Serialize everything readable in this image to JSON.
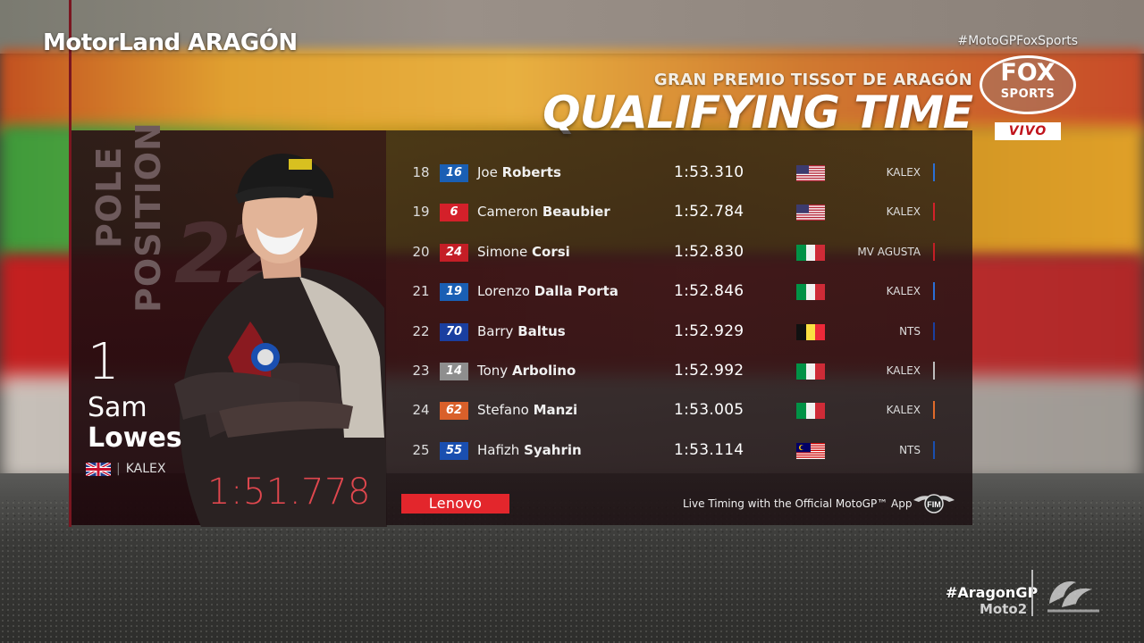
{
  "venue": "MotorLand ARAGÓN",
  "hashtag_top": "#MotoGPFoxSports",
  "event": "GRAN PREMIO TISSOT DE ARAGÓN",
  "session": "QUALIFYING TIME",
  "broadcaster": {
    "line1": "FOX",
    "line2": "SPORTS",
    "badge": "VIVO"
  },
  "pole": {
    "label": "POLE POSITION",
    "label_words": [
      "POLE",
      "POSITION"
    ],
    "bike_number": "22",
    "position": "1",
    "first_name": "Sam",
    "last_name": "Lowes",
    "team": "KALEX",
    "flag": "gb-flag",
    "time": "1:51.778"
  },
  "results": [
    {
      "pos": "18",
      "num": "16",
      "num_color": "#1a5fb4",
      "first": "Joe",
      "last": "Roberts",
      "time": "1:53.310",
      "flag": "us-flag",
      "team": "KALEX",
      "bar_color": "#2a6fd6"
    },
    {
      "pos": "19",
      "num": "6",
      "num_color": "#d4202a",
      "first": "Cameron",
      "last": "Beaubier",
      "time": "1:52.784",
      "flag": "us-flag",
      "team": "KALEX",
      "bar_color": "#d4202a"
    },
    {
      "pos": "20",
      "num": "24",
      "num_color": "#c41e26",
      "first": "Simone",
      "last": "Corsi",
      "time": "1:52.830",
      "flag": "it-flag",
      "team": "MV AGUSTA",
      "bar_color": "#c41e26"
    },
    {
      "pos": "21",
      "num": "19",
      "num_color": "#1a5fb4",
      "first": "Lorenzo",
      "last": "Dalla Porta",
      "time": "1:52.846",
      "flag": "it-flag",
      "team": "KALEX",
      "bar_color": "#2a6fd6"
    },
    {
      "pos": "22",
      "num": "70",
      "num_color": "#1a3fa0",
      "first": "Barry",
      "last": "Baltus",
      "time": "1:52.929",
      "flag": "be-flag",
      "team": "NTS",
      "bar_color": "#1a3fa0"
    },
    {
      "pos": "23",
      "num": "14",
      "num_color": "#8e8e8e",
      "first": "Tony",
      "last": "Arbolino",
      "time": "1:52.992",
      "flag": "it-flag",
      "team": "KALEX",
      "bar_color": "#bdbdbd"
    },
    {
      "pos": "24",
      "num": "62",
      "num_color": "#d9602a",
      "first": "Stefano",
      "last": "Manzi",
      "time": "1:53.005",
      "flag": "it-flag",
      "team": "KALEX",
      "bar_color": "#e06a2a"
    },
    {
      "pos": "25",
      "num": "55",
      "num_color": "#1a4fb0",
      "first": "Hafizh",
      "last": "Syahrin",
      "time": "1:53.114",
      "flag": "my-flag",
      "team": "NTS",
      "bar_color": "#1a4fb0"
    }
  ],
  "sponsor": "Lenovo",
  "live_timing": "Live Timing with the Official MotoGP™ App",
  "fim_logo": "FIM",
  "hashtag_bottom": "#AragonGP",
  "category": "Moto2",
  "motogp_logo": "motogp-logo"
}
